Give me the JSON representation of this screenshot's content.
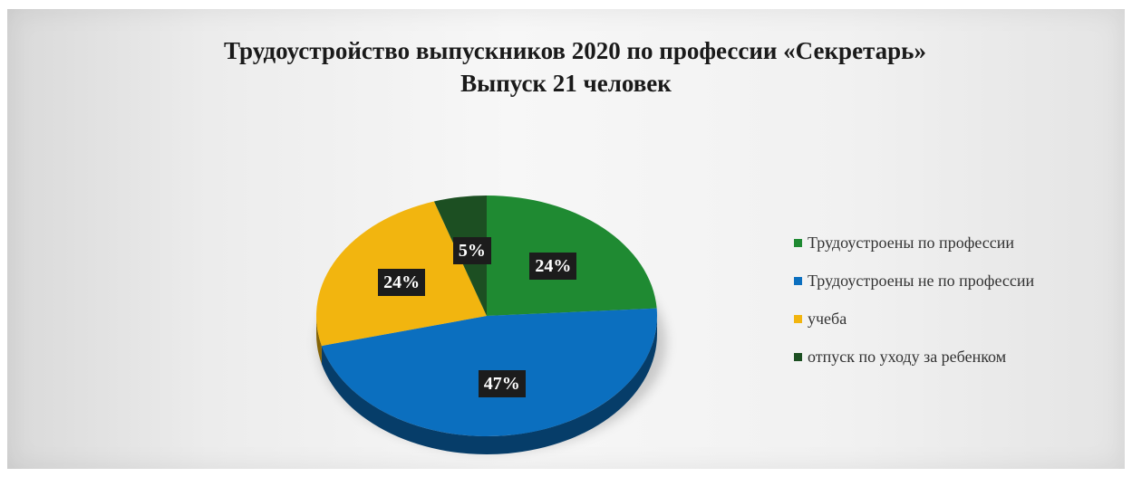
{
  "chart_data": {
    "type": "pie",
    "title": "Трудоустройство выпускников 2020 по профессии «Секретарь»",
    "subtitle": "Выпуск 21 человек",
    "legend_position": "right",
    "slices": [
      {
        "label": "Трудоустроены по профессии",
        "value": 24,
        "display": "24%",
        "color": "#1f8a32"
      },
      {
        "label": "Трудоустроены не по профессии",
        "value": 47,
        "display": "47%",
        "color": "#0b6fbf"
      },
      {
        "label": "учеба",
        "value": 24,
        "display": "24%",
        "color": "#f2b50f"
      },
      {
        "label": "отпуск по уходу за ребенком",
        "value": 5,
        "display": "5%",
        "color": "#1c4f22"
      }
    ]
  }
}
